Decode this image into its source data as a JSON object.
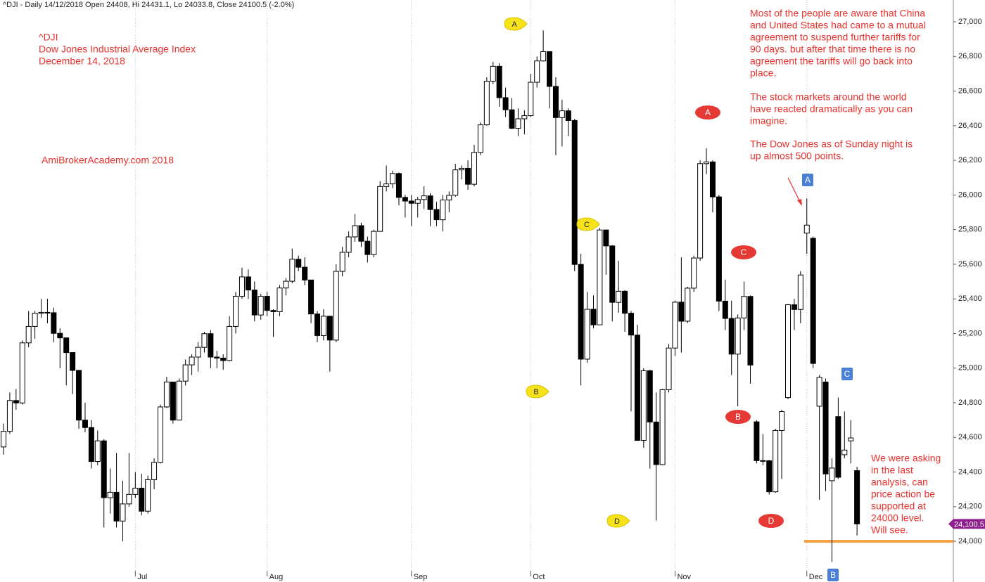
{
  "chart_data": {
    "type": "candlestick",
    "header": "^DJI - Daily 14/12/2018 Open 24408, Hi 24431.1, Lo 24033.8, Close 24100.5 (-2.0%)",
    "title_lines": [
      "^DJI",
      "Dow Jones Industrial Average Index",
      "December 14, 2018"
    ],
    "watermark": "AmiBrokerAcademy.com  2018",
    "paragraphs": [
      [
        "Most of the people are aware that China",
        "and United States had came to a mutual",
        "agreement to suspend further tariffs for",
        "90 days. but after that time there is no",
        "agreement the tariffs will go back into",
        "place."
      ],
      [
        "The stock markets around the world",
        "have reacted dramatically as you can",
        "imagine."
      ],
      [
        "The Dow Jones as of Sunday night is",
        "up almost 500 points."
      ]
    ],
    "side_note": [
      "We were asking",
      "in the last",
      "analysis, can",
      "price action be",
      "supported at",
      "24000 level.",
      "Will see."
    ],
    "markers": [
      "A",
      "B",
      "C",
      "D",
      "A",
      "C",
      "B",
      "D",
      "A",
      "C",
      "B"
    ],
    "categories": [
      null,
      null,
      null,
      null,
      null,
      null,
      null,
      null,
      null,
      null,
      null,
      null,
      null,
      null,
      null,
      null,
      null,
      null,
      null,
      null,
      null,
      "Jul",
      null,
      null,
      null,
      null,
      null,
      null,
      null,
      null,
      null,
      null,
      null,
      null,
      null,
      null,
      null,
      null,
      null,
      null,
      null,
      null,
      "Aug",
      null,
      null,
      null,
      null,
      null,
      null,
      null,
      null,
      null,
      null,
      null,
      null,
      null,
      null,
      null,
      null,
      null,
      null,
      null,
      null,
      null,
      null,
      "Sep",
      null,
      null,
      null,
      null,
      null,
      null,
      null,
      null,
      null,
      null,
      null,
      null,
      null,
      null,
      null,
      null,
      null,
      null,
      "Oct",
      null,
      null,
      null,
      null,
      null,
      null,
      null,
      null,
      null,
      null,
      null,
      null,
      null,
      null,
      null,
      null,
      null,
      null,
      null,
      null,
      null,
      null,
      "Nov",
      null,
      null,
      null,
      null,
      null,
      null,
      null,
      null,
      null,
      null,
      null,
      null,
      null,
      null,
      null,
      null,
      null,
      null,
      null,
      null,
      "Dec",
      null,
      null,
      null,
      null,
      null,
      null,
      null,
      null
    ],
    "ohlc": [
      [
        24545,
        24680,
        24500,
        24635
      ],
      [
        24635,
        24860,
        24620,
        24813
      ],
      [
        24813,
        24880,
        24760,
        24799
      ],
      [
        24799,
        25160,
        24790,
        25146
      ],
      [
        25146,
        25330,
        25120,
        25241
      ],
      [
        25241,
        25330,
        25170,
        25317
      ],
      [
        25317,
        25400,
        25290,
        25322
      ],
      [
        25322,
        25400,
        25260,
        25320
      ],
      [
        25320,
        25350,
        25150,
        25201
      ],
      [
        25201,
        25230,
        25000,
        25175
      ],
      [
        25175,
        25175,
        24900,
        25090
      ],
      [
        25090,
        25090,
        24850,
        24987
      ],
      [
        24987,
        24990,
        24650,
        24700
      ],
      [
        24700,
        24800,
        24630,
        24657
      ],
      [
        24657,
        24700,
        24420,
        24461
      ],
      [
        24461,
        24640,
        24440,
        24580
      ],
      [
        24580,
        24590,
        24080,
        24252
      ],
      [
        24252,
        24420,
        24160,
        24283
      ],
      [
        24283,
        24510,
        24080,
        24117
      ],
      [
        24117,
        24350,
        24000,
        24216
      ],
      [
        24216,
        24510,
        24200,
        24271
      ],
      [
        24271,
        24400,
        24250,
        24307
      ],
      [
        24307,
        24390,
        24150,
        24174
      ],
      [
        24174,
        24380,
        24160,
        24356
      ],
      [
        24356,
        24480,
        24300,
        24456
      ],
      [
        24456,
        24790,
        24450,
        24776
      ],
      [
        24776,
        24950,
        24770,
        24920
      ],
      [
        24920,
        24920,
        24680,
        24700
      ],
      [
        24700,
        24940,
        24700,
        24925
      ],
      [
        24925,
        25050,
        24900,
        25019
      ],
      [
        25019,
        25080,
        24960,
        25064
      ],
      [
        25064,
        25150,
        24980,
        25120
      ],
      [
        25120,
        25210,
        25090,
        25199
      ],
      [
        25199,
        25220,
        25000,
        25064
      ],
      [
        25064,
        25100,
        25000,
        25058
      ],
      [
        25058,
        25080,
        24990,
        25044
      ],
      [
        25044,
        25300,
        25040,
        25241
      ],
      [
        25241,
        25440,
        25200,
        25415
      ],
      [
        25415,
        25580,
        25400,
        25527
      ],
      [
        25527,
        25570,
        25400,
        25451
      ],
      [
        25451,
        25500,
        25270,
        25307
      ],
      [
        25307,
        25430,
        25280,
        25415
      ],
      [
        25415,
        25440,
        25300,
        25333
      ],
      [
        25333,
        25340,
        25180,
        25326
      ],
      [
        25326,
        25480,
        25300,
        25463
      ],
      [
        25463,
        25520,
        25420,
        25502
      ],
      [
        25502,
        25690,
        25490,
        25629
      ],
      [
        25629,
        25650,
        25560,
        25583
      ],
      [
        25583,
        25640,
        25480,
        25509
      ],
      [
        25509,
        25510,
        25260,
        25313
      ],
      [
        25313,
        25330,
        25150,
        25188
      ],
      [
        25188,
        25340,
        25160,
        25300
      ],
      [
        25300,
        25300,
        24980,
        25162
      ],
      [
        25162,
        25600,
        25150,
        25559
      ],
      [
        25559,
        25700,
        25530,
        25669
      ],
      [
        25669,
        25790,
        25640,
        25758
      ],
      [
        25758,
        25890,
        25730,
        25823
      ],
      [
        25823,
        25840,
        25700,
        25733
      ],
      [
        25733,
        25760,
        25610,
        25656
      ],
      [
        25656,
        25800,
        25640,
        25790
      ],
      [
        25790,
        26080,
        25790,
        26049
      ],
      [
        26049,
        26170,
        26020,
        26064
      ],
      [
        26064,
        26140,
        26040,
        26124
      ],
      [
        26124,
        26130,
        25940,
        25986
      ],
      [
        25986,
        26000,
        25870,
        25965
      ],
      [
        25965,
        26000,
        25820,
        25952
      ],
      [
        25952,
        25990,
        25870,
        25974
      ],
      [
        25974,
        26050,
        25920,
        25995
      ],
      [
        25995,
        26010,
        25820,
        25916
      ],
      [
        25916,
        25960,
        25820,
        25857
      ],
      [
        25857,
        26000,
        25790,
        25971
      ],
      [
        25971,
        26020,
        25900,
        25998
      ],
      [
        25998,
        26180,
        25990,
        26145
      ],
      [
        26145,
        26170,
        26090,
        26154
      ],
      [
        26154,
        26200,
        26030,
        26062
      ],
      [
        26062,
        26290,
        26050,
        26246
      ],
      [
        26246,
        26420,
        26230,
        26405
      ],
      [
        26405,
        26680,
        26400,
        26657
      ],
      [
        26657,
        26770,
        26640,
        26743
      ],
      [
        26743,
        26760,
        26510,
        26562
      ],
      [
        26562,
        26620,
        26450,
        26492
      ],
      [
        26492,
        26560,
        26380,
        26385
      ],
      [
        26385,
        26500,
        26340,
        26440
      ],
      [
        26440,
        26490,
        26350,
        26458
      ],
      [
        26458,
        26700,
        26450,
        26651
      ],
      [
        26651,
        26800,
        26620,
        26774
      ],
      [
        26774,
        26951,
        26770,
        26828
      ],
      [
        26828,
        26830,
        26500,
        26627
      ],
      [
        26627,
        26680,
        26230,
        26447
      ],
      [
        26447,
        26550,
        26280,
        26486
      ],
      [
        26486,
        26500,
        26340,
        26430
      ],
      [
        26430,
        26440,
        25560,
        25599
      ],
      [
        25599,
        25660,
        24900,
        25052
      ],
      [
        25052,
        25440,
        25030,
        25340
      ],
      [
        25340,
        25420,
        25230,
        25250
      ],
      [
        25250,
        25810,
        25250,
        25798
      ],
      [
        25798,
        25800,
        25540,
        25706
      ],
      [
        25706,
        25710,
        25270,
        25380
      ],
      [
        25380,
        25620,
        25320,
        25444
      ],
      [
        25444,
        25450,
        25210,
        25317
      ],
      [
        25317,
        25330,
        24750,
        25191
      ],
      [
        25191,
        25250,
        24580,
        24583
      ],
      [
        24583,
        25000,
        24540,
        24985
      ],
      [
        24985,
        24990,
        24420,
        24689
      ],
      [
        24689,
        24860,
        24120,
        24443
      ],
      [
        24443,
        24880,
        24440,
        24875
      ],
      [
        24875,
        25140,
        24860,
        25116
      ],
      [
        25116,
        25390,
        25070,
        25381
      ],
      [
        25381,
        25640,
        25090,
        25271
      ],
      [
        25271,
        25470,
        25260,
        25462
      ],
      [
        25462,
        25650,
        25440,
        25636
      ],
      [
        25636,
        26200,
        25620,
        26181
      ],
      [
        26181,
        26270,
        26120,
        26191
      ],
      [
        26191,
        26200,
        25900,
        25989
      ],
      [
        25989,
        26000,
        25330,
        25387
      ],
      [
        25387,
        25510,
        25220,
        25287
      ],
      [
        25287,
        25390,
        24960,
        25081
      ],
      [
        25081,
        25310,
        24780,
        25290
      ],
      [
        25290,
        25500,
        25220,
        25414
      ],
      [
        25414,
        25420,
        24910,
        25018
      ],
      [
        24690,
        24700,
        24450,
        24466
      ],
      [
        24466,
        24620,
        24440,
        24465
      ],
      [
        24465,
        24470,
        24270,
        24286
      ],
      [
        24286,
        24650,
        24280,
        24640
      ],
      [
        24640,
        24760,
        24360,
        24749
      ],
      [
        24830,
        25370,
        24820,
        25366
      ],
      [
        25366,
        25400,
        25220,
        25339
      ],
      [
        25339,
        25560,
        25260,
        25538
      ],
      [
        25780,
        25980,
        25660,
        25826
      ],
      [
        25750,
        25760,
        25000,
        25027
      ],
      [
        24780,
        24960,
        24240,
        24947
      ],
      [
        24920,
        24940,
        24290,
        24389
      ],
      [
        24350,
        24480,
        23880,
        24423
      ],
      [
        24720,
        24830,
        24360,
        24370
      ],
      [
        24500,
        24750,
        24480,
        24527
      ],
      [
        24580,
        24700,
        24450,
        24597
      ],
      [
        24408,
        24431.1,
        24033.8,
        24100.5
      ]
    ],
    "up_color": "#ffffff",
    "down_color": "#000000",
    "ylim": [
      23765,
      27126
    ],
    "yticks": [
      {
        "value": 24000,
        "label": "24,000"
      },
      {
        "value": 24200,
        "label": "24,200"
      },
      {
        "value": 24400,
        "label": "24,400"
      },
      {
        "value": 24600,
        "label": "24,600"
      },
      {
        "value": 24800,
        "label": "24,800"
      },
      {
        "value": 25000,
        "label": "25,000"
      },
      {
        "value": 25200,
        "label": "25,200"
      },
      {
        "value": 25400,
        "label": "25,400"
      },
      {
        "value": 25600,
        "label": "25,600"
      },
      {
        "value": 25800,
        "label": "25,800"
      },
      {
        "value": 26000,
        "label": "26,000"
      },
      {
        "value": 26200,
        "label": "26,200"
      },
      {
        "value": 26400,
        "label": "26,400"
      },
      {
        "value": 26600,
        "label": "26,600"
      },
      {
        "value": 26800,
        "label": "26,800"
      },
      {
        "value": 27000,
        "label": "27,000"
      }
    ],
    "last_price": {
      "value": 24100.5,
      "label": "24,100.5"
    },
    "support_level": 24000,
    "support_color": "#f4a040",
    "grid": true
  }
}
